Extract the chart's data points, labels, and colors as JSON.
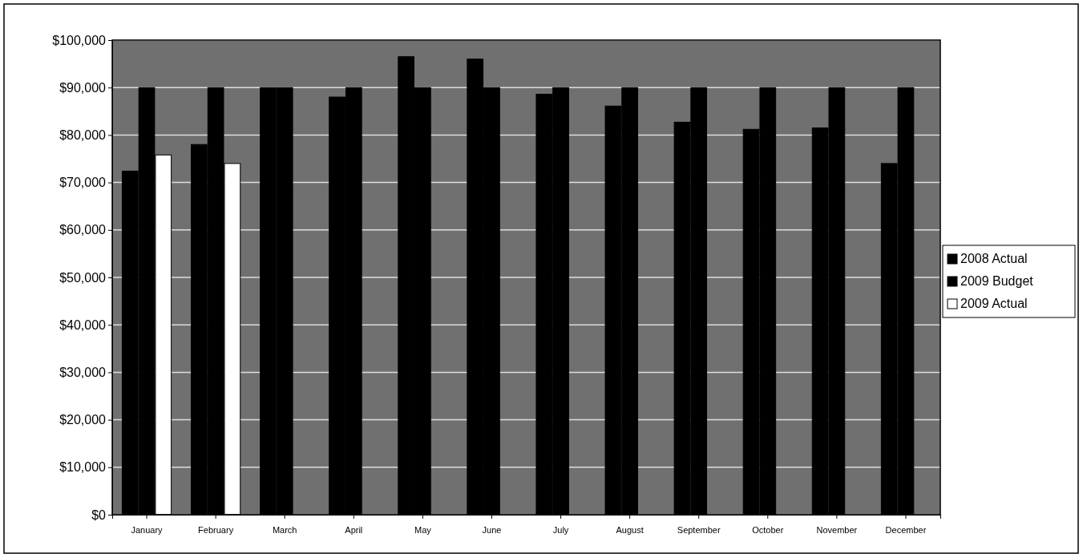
{
  "chart_data": {
    "type": "bar",
    "categories": [
      "January",
      "February",
      "March",
      "April",
      "May",
      "June",
      "July",
      "August",
      "September",
      "October",
      "November",
      "December"
    ],
    "series": [
      {
        "name": "2008 Actual",
        "color": "#000000",
        "values": [
          72400,
          78000,
          90000,
          88000,
          96500,
          96000,
          88600,
          86100,
          82700,
          81200,
          81500,
          74000
        ]
      },
      {
        "name": "2009 Budget",
        "color": "#000000",
        "values": [
          90000,
          90000,
          90000,
          90000,
          90000,
          90000,
          90000,
          90000,
          90000,
          90000,
          90000,
          90000
        ]
      },
      {
        "name": "2009 Actual",
        "color": "#ffffff",
        "values": [
          75800,
          74000,
          null,
          null,
          null,
          null,
          null,
          null,
          null,
          null,
          null,
          null
        ]
      }
    ],
    "ylim": [
      0,
      100000
    ],
    "yticks": [
      {
        "value": 0,
        "label": "$0"
      },
      {
        "value": 10000,
        "label": "$10,000"
      },
      {
        "value": 20000,
        "label": "$20,000"
      },
      {
        "value": 30000,
        "label": "$30,000"
      },
      {
        "value": 40000,
        "label": "$40,000"
      },
      {
        "value": 50000,
        "label": "$50,000"
      },
      {
        "value": 60000,
        "label": "$60,000"
      },
      {
        "value": 70000,
        "label": "$70,000"
      },
      {
        "value": 80000,
        "label": "$80,000"
      },
      {
        "value": 90000,
        "label": "$90,000"
      },
      {
        "value": 100000,
        "label": "$100,000"
      }
    ],
    "grid": "y",
    "legend": "right"
  }
}
